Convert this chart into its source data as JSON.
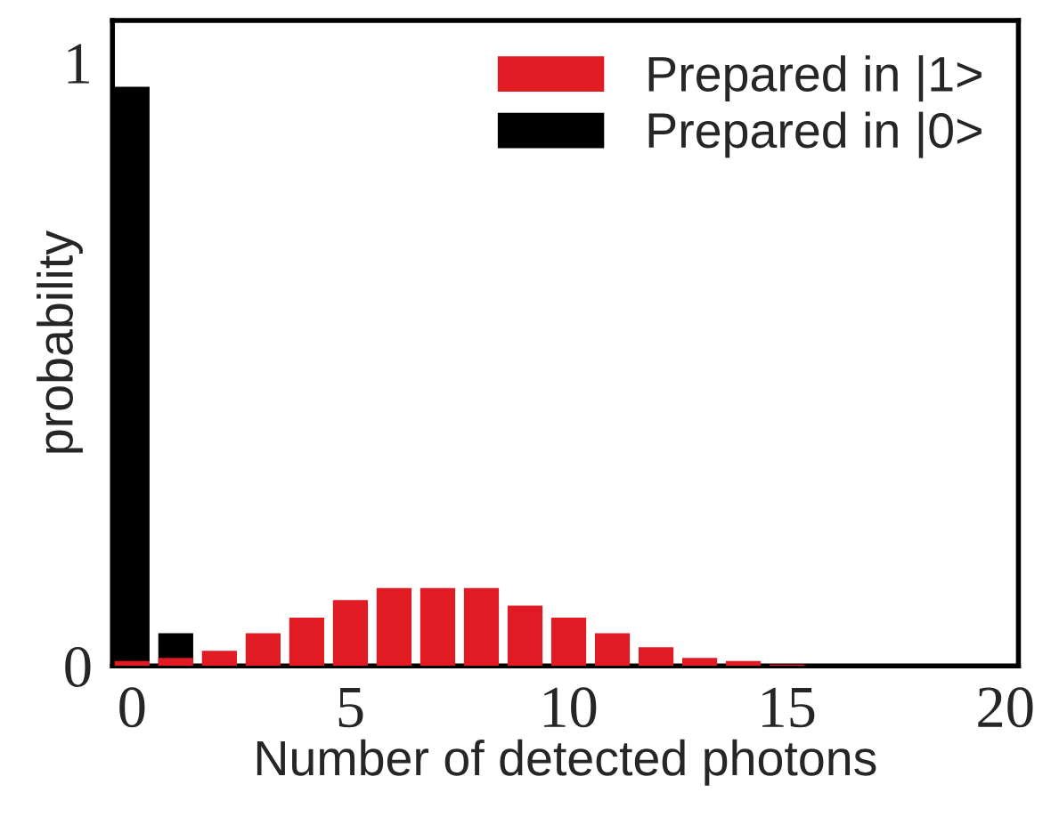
{
  "chart_data": {
    "type": "bar",
    "xlabel": "Number of detected photons",
    "ylabel": "probability",
    "x": [
      0,
      1,
      2,
      3,
      4,
      5,
      6,
      7,
      8,
      9,
      10,
      11,
      12,
      13,
      14,
      15
    ],
    "series": [
      {
        "name": "Prepared in |0>",
        "color": "#000000",
        "values": [
          0.96,
          0.054,
          0.002,
          null,
          null,
          null,
          null,
          null,
          null,
          null,
          null,
          null,
          null,
          null,
          null,
          null
        ]
      },
      {
        "name": "Prepared in |1>",
        "color": "#e01b24",
        "values": [
          0.008,
          0.013,
          0.025,
          0.054,
          0.08,
          0.109,
          0.129,
          0.129,
          0.129,
          0.1,
          0.08,
          0.054,
          0.031,
          0.013,
          0.008,
          0.002
        ]
      }
    ],
    "xlim": [
      -0.45,
      20.3
    ],
    "ylim": [
      0,
      1.07
    ],
    "xticks": [
      0,
      5,
      10,
      15,
      20
    ],
    "yticks": [
      0,
      1
    ],
    "legend": "top right",
    "grid": false
  }
}
